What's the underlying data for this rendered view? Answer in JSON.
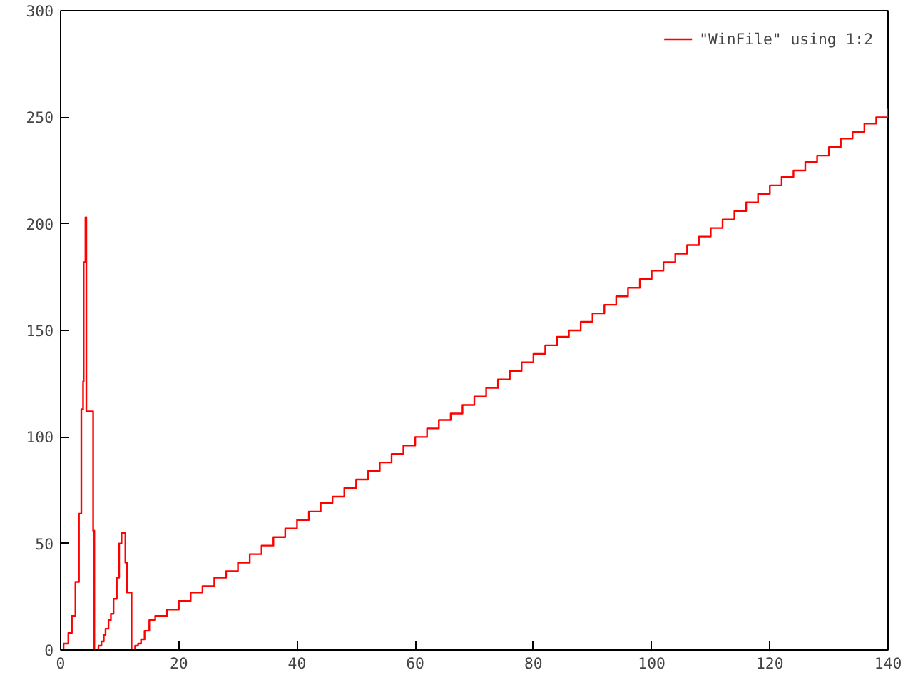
{
  "chart_data": {
    "type": "step",
    "x": [
      0,
      0.5,
      1.3,
      1.9,
      2.5,
      3.1,
      3.5,
      3.8,
      3.9,
      4.2,
      4.35,
      5.5,
      5.7,
      6.4,
      6.9,
      7.3,
      7.6,
      8.1,
      8.5,
      8.95,
      9.5,
      9.9,
      10.3,
      10.95,
      11.2,
      12,
      12.6,
      13.1,
      13.6,
      14.2,
      15,
      16,
      18,
      20,
      22,
      24,
      26,
      28,
      30,
      32,
      34,
      36,
      38,
      40,
      42,
      44,
      46,
      48,
      50,
      52,
      54,
      56,
      58,
      60,
      62,
      64,
      66,
      68,
      70,
      72,
      74,
      76,
      78,
      80,
      82,
      84,
      86,
      88,
      90,
      92,
      94,
      96,
      98,
      100,
      102,
      104,
      106,
      108,
      110,
      112,
      114,
      116,
      118,
      120,
      122,
      124,
      126,
      128,
      130,
      132,
      134,
      136,
      138,
      140
    ],
    "series": [
      {
        "name": "\"WinFile\" using 1:2",
        "color": "#ff0000",
        "values": [
          0,
          3,
          8,
          16,
          32,
          64,
          113,
          126,
          182,
          203,
          112,
          56,
          0,
          2,
          4,
          7,
          10,
          14,
          17,
          24,
          34,
          50,
          55,
          41,
          27,
          0,
          2,
          3,
          5,
          9,
          14,
          16,
          19,
          23,
          27,
          30,
          34,
          37,
          41,
          45,
          49,
          53,
          57,
          61,
          65,
          69,
          72,
          76,
          80,
          84,
          88,
          92,
          96,
          100,
          104,
          108,
          111,
          115,
          119,
          123,
          127,
          131,
          135,
          139,
          143,
          147,
          150,
          154,
          158,
          162,
          166,
          170,
          174,
          178,
          182,
          186,
          190,
          194,
          198,
          202,
          206,
          210,
          214,
          218,
          222,
          225,
          229,
          232,
          236,
          240,
          243,
          247,
          250,
          254
        ]
      }
    ],
    "xlim": [
      0,
      140
    ],
    "ylim": [
      0,
      300
    ],
    "xticks": [
      0,
      20,
      40,
      60,
      80,
      100,
      120,
      140
    ],
    "yticks": [
      0,
      50,
      100,
      150,
      200,
      250,
      300
    ],
    "grid": false,
    "legend": "top right"
  }
}
